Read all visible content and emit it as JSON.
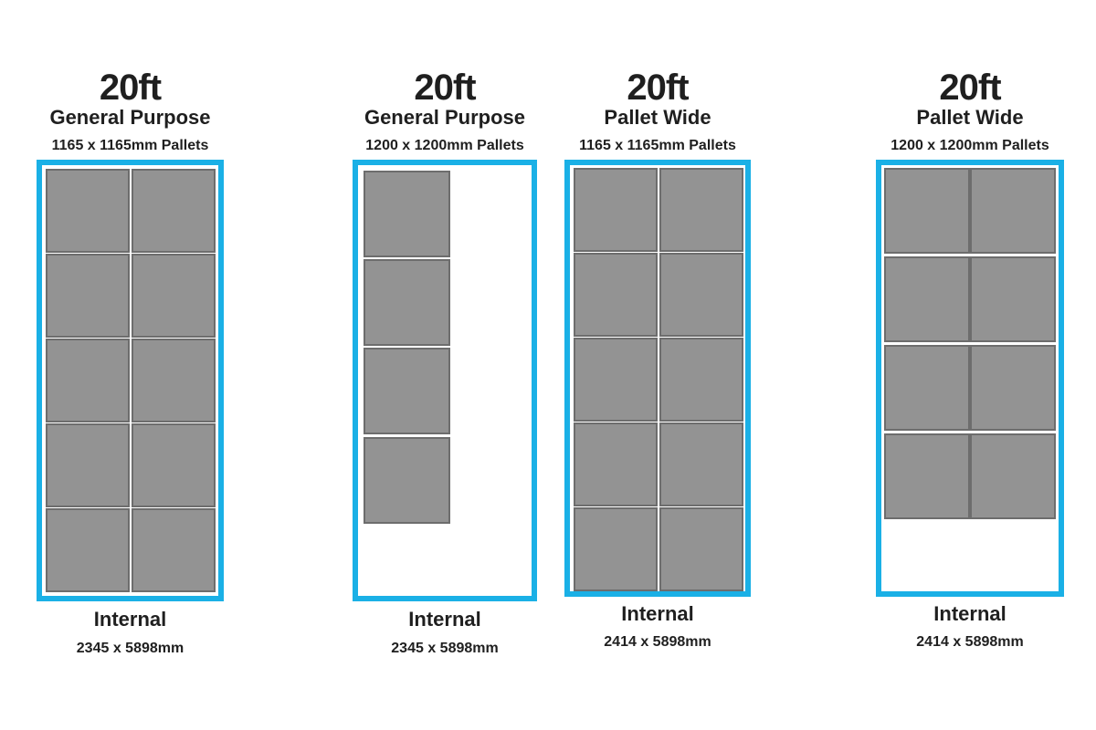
{
  "accent_color": "#1ab0e6",
  "pallet_color": "#939393",
  "panels": [
    {
      "size": "20ft",
      "type": "General Purpose",
      "pallet_size": "1165 x 1165mm Pallets",
      "internal_label": "Internal",
      "internal_dims": "2345 x 5898mm",
      "pallet_columns": 2,
      "pallet_rows": 5,
      "pallet_count": 10
    },
    {
      "size": "20ft",
      "type": "General Purpose",
      "pallet_size": "1200 x 1200mm Pallets",
      "internal_label": "Internal",
      "internal_dims": "2345 x 5898mm",
      "pallet_columns": 1,
      "pallet_rows": 4,
      "pallet_count": 4
    },
    {
      "size": "20ft",
      "type": "Pallet Wide",
      "pallet_size": "1165 x 1165mm Pallets",
      "internal_label": "Internal",
      "internal_dims": "2414 x 5898mm",
      "pallet_columns": 2,
      "pallet_rows": 5,
      "pallet_count": 10
    },
    {
      "size": "20ft",
      "type": "Pallet Wide",
      "pallet_size": "1200 x 1200mm Pallets",
      "internal_label": "Internal",
      "internal_dims": "2414 x 5898mm",
      "pallet_columns": 2,
      "pallet_rows": 4,
      "pallet_count": 8
    }
  ]
}
